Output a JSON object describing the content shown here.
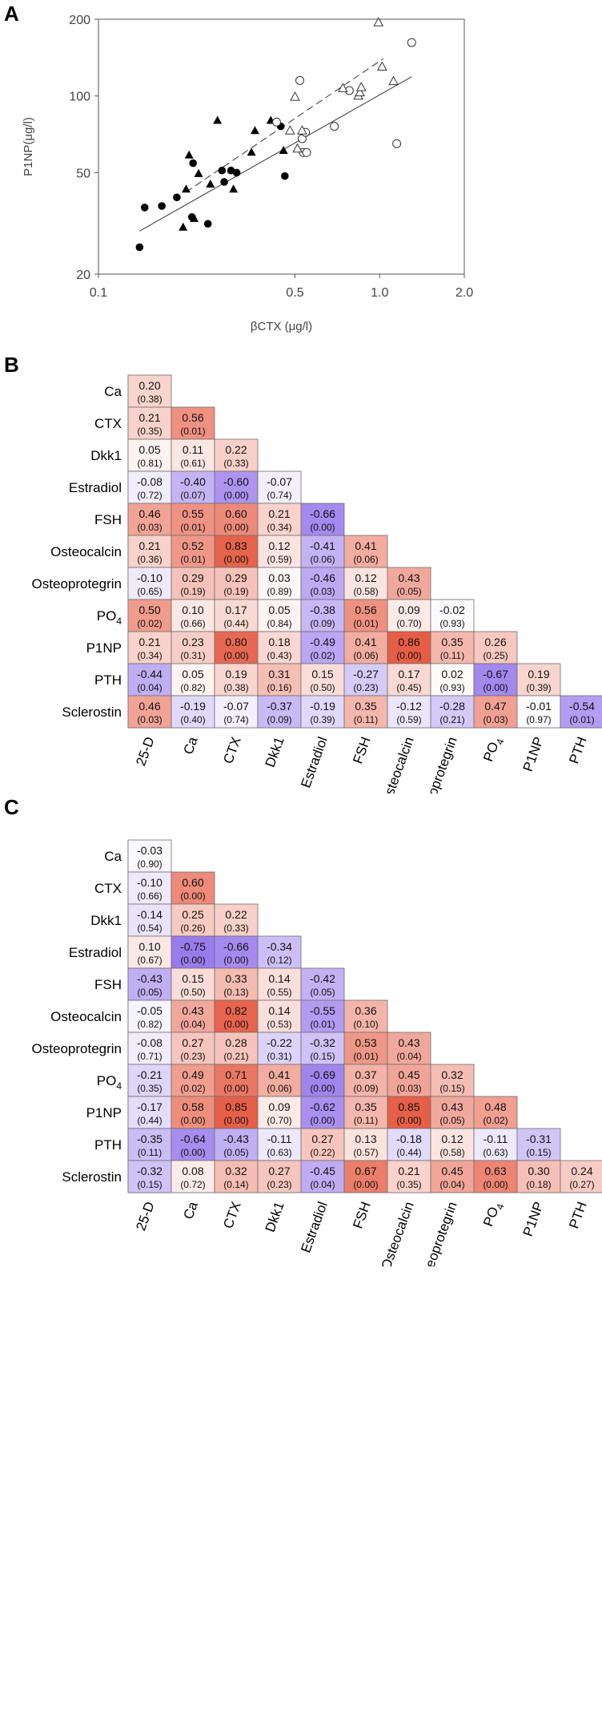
{
  "panels": {
    "A": "A",
    "B": "B",
    "C": "C"
  },
  "chart_data": [
    {
      "type": "scatter",
      "panel": "A",
      "xlabel": "βCTX (μg/l)",
      "ylabel": "P1NP(μg/l)",
      "x_scale": "log",
      "y_scale": "log",
      "xlim": [
        0.1,
        2.0
      ],
      "ylim": [
        20,
        200
      ],
      "x_ticks": [
        0.1,
        0.5,
        1.0,
        2.0
      ],
      "x_tick_labels": [
        "0.1",
        "0.5",
        "1.0",
        "2.0"
      ],
      "y_ticks": [
        20,
        50,
        100,
        200
      ],
      "y_tick_labels": [
        "20",
        "50",
        "100",
        "200"
      ],
      "series": [
        {
          "name": "filled circles",
          "marker": "circle-filled",
          "x": [
            0.14,
            0.146,
            0.168,
            0.19,
            0.215,
            0.217,
            0.245,
            0.275,
            0.28,
            0.296,
            0.31,
            0.445,
            0.46
          ],
          "y": [
            25.5,
            36.5,
            37.0,
            40.0,
            33.5,
            54.5,
            31.5,
            51.0,
            46.0,
            51.0,
            50.0,
            76.0,
            48.5
          ]
        },
        {
          "name": "filled triangles",
          "marker": "triangle-filled",
          "x": [
            0.2,
            0.205,
            0.21,
            0.219,
            0.227,
            0.25,
            0.265,
            0.302,
            0.35,
            0.36,
            0.41,
            0.455
          ],
          "y": [
            30.5,
            43.0,
            58.5,
            33.0,
            49.5,
            45.0,
            80.0,
            43.0,
            60.0,
            73.0,
            80.0,
            61.0
          ]
        },
        {
          "name": "open circles",
          "marker": "circle-open",
          "x": [
            0.43,
            0.52,
            0.53,
            0.535,
            0.545,
            0.55,
            0.69,
            0.78,
            1.15,
            1.3
          ],
          "y": [
            79.0,
            115.0,
            68.0,
            60.0,
            72.0,
            60.0,
            76.0,
            105.0,
            65.0,
            162.0
          ],
          "note": "approximate positions"
        },
        {
          "name": "open triangles",
          "marker": "triangle-open",
          "x": [
            0.48,
            0.5,
            0.51,
            0.53,
            0.74,
            0.84,
            0.85,
            0.86,
            0.99,
            1.02,
            1.12
          ],
          "y": [
            73.0,
            99.0,
            62.0,
            73.0,
            107.0,
            100.0,
            103.0,
            108.0,
            194.0,
            130.0,
            114.0
          ]
        }
      ],
      "fit_lines": [
        {
          "style": "solid",
          "x": [
            0.14,
            1.3
          ],
          "y": [
            29.5,
            119.0
          ]
        },
        {
          "style": "dashed",
          "x": [
            0.205,
            1.03
          ],
          "y": [
            42.0,
            140.0
          ]
        }
      ]
    },
    {
      "type": "heatmap",
      "panel": "B",
      "shape": "lower-triangle",
      "row_labels": [
        "Ca",
        "CTX",
        "Dkk1",
        "Estradiol",
        "FSH",
        "Osteocalcin",
        "Osteoprotegrin",
        "PO₄",
        "P1NP",
        "PTH",
        "Sclerostin"
      ],
      "column_labels": [
        "25-D",
        "Ca",
        "CTX",
        "Dkk1",
        "Estradiol",
        "FSH",
        "Osteocalcin",
        "Osteoprotegrin",
        "PO₄",
        "P1NP",
        "PTH"
      ],
      "values": [
        [
          "0.20"
        ],
        [
          "0.21",
          "0.56"
        ],
        [
          "0.05",
          "0.11",
          "0.22"
        ],
        [
          "-0.08",
          "-0.40",
          "-0.60",
          "-0.07"
        ],
        [
          "0.46",
          "0.55",
          "0.60",
          "0.21",
          "-0.66"
        ],
        [
          "0.21",
          "0.52",
          "0.83",
          "0.12",
          "-0.41",
          "0.41"
        ],
        [
          "-0.10",
          "0.29",
          "0.29",
          "0.03",
          "-0.46",
          "0.12",
          "0.43"
        ],
        [
          "0.50",
          "0.10",
          "0.17",
          "0.05",
          "-0.38",
          "0.56",
          "0.09",
          "-0.02"
        ],
        [
          "0.21",
          "0.23",
          "0.80",
          "0.18",
          "-0.49",
          "0.41",
          "0.86",
          "0.35",
          "0.26"
        ],
        [
          "-0.44",
          "0.05",
          "0.19",
          "0.31",
          "0.15",
          "-0.27",
          "0.17",
          "0.02",
          "-0.67",
          "0.19"
        ],
        [
          "0.46",
          "-0.19",
          "-0.07",
          "-0.37",
          "-0.19",
          "0.35",
          "-0.12",
          "-0.28",
          "0.47",
          "-0.01",
          "-0.54"
        ]
      ],
      "p_values": [
        [
          "(0.38)"
        ],
        [
          "(0.35)",
          "(0.01)"
        ],
        [
          "(0.81)",
          "(0.61)",
          "(0.33)"
        ],
        [
          "(0.72)",
          "(0.07)",
          "(0.00)",
          "(0.74)"
        ],
        [
          "(0.03)",
          "(0.01)",
          "(0.00)",
          "(0.34)",
          "(0.00)"
        ],
        [
          "(0.36)",
          "(0.01)",
          "(0.00)",
          "(0.59)",
          "(0.06)",
          "(0.06)"
        ],
        [
          "(0.65)",
          "(0.19)",
          "(0.19)",
          "(0.89)",
          "(0.03)",
          "(0.58)",
          "(0.05)"
        ],
        [
          "(0.02)",
          "(0.66)",
          "(0.44)",
          "(0.84)",
          "(0.09)",
          "(0.01)",
          "(0.70)",
          "(0.93)"
        ],
        [
          "(0.34)",
          "(0.31)",
          "(0.00)",
          "(0.43)",
          "(0.02)",
          "(0.06)",
          "(0.00)",
          "(0.11)",
          "(0.25)"
        ],
        [
          "(0.04)",
          "(0.82)",
          "(0.38)",
          "(0.16)",
          "(0.50)",
          "(0.23)",
          "(0.45)",
          "(0.93)",
          "(0.00)",
          "(0.39)"
        ],
        [
          "(0.03)",
          "(0.40)",
          "(0.74)",
          "(0.09)",
          "(0.39)",
          "(0.11)",
          "(0.59)",
          "(0.21)",
          "(0.03)",
          "(0.97)",
          "(0.01)"
        ]
      ]
    },
    {
      "type": "heatmap",
      "panel": "C",
      "shape": "lower-triangle",
      "row_labels": [
        "Ca",
        "CTX",
        "Dkk1",
        "Estradiol",
        "FSH",
        "Osteocalcin",
        "Osteoprotegrin",
        "PO₄",
        "P1NP",
        "PTH",
        "Sclerostin"
      ],
      "column_labels": [
        "25-D",
        "Ca",
        "CTX",
        "Dkk1",
        "Estradiol",
        "FSH",
        "Osteocalcin",
        "Osteoprotegrin",
        "PO₄",
        "P1NP",
        "PTH"
      ],
      "values": [
        [
          "-0.03"
        ],
        [
          "-0.10",
          "0.60"
        ],
        [
          "-0.14",
          "0.25",
          "0.22"
        ],
        [
          "0.10",
          "-0.75",
          "-0.66",
          "-0.34"
        ],
        [
          "-0.43",
          "0.15",
          "0.33",
          "0.14",
          "-0.42"
        ],
        [
          "-0.05",
          "0.43",
          "0.82",
          "0.14",
          "-0.55",
          "0.36"
        ],
        [
          "-0.08",
          "0.27",
          "0.28",
          "-0.22",
          "-0.32",
          "0.53",
          "0.43"
        ],
        [
          "-0.21",
          "0.49",
          "0.71",
          "0.41",
          "-0.69",
          "0.37",
          "0.45",
          "0.32"
        ],
        [
          "-0.17",
          "0.58",
          "0.85",
          "0.09",
          "-0.62",
          "0.35",
          "0.85",
          "0.43",
          "0.48"
        ],
        [
          "-0.35",
          "-0.64",
          "-0.43",
          "-0.11",
          "0.27",
          "0.13",
          "-0.18",
          "0.12",
          "-0.11",
          "-0.31"
        ],
        [
          "-0.32",
          "0.08",
          "0.32",
          "0.27",
          "-0.45",
          "0.67",
          "0.21",
          "0.45",
          "0.63",
          "0.30",
          "0.24"
        ]
      ],
      "p_values": [
        [
          "(0.90)"
        ],
        [
          "(0.66)",
          "(0.00)"
        ],
        [
          "(0.54)",
          "(0.26)",
          "(0.33)"
        ],
        [
          "(0.67)",
          "(0.00)",
          "(0.00)",
          "(0.12)"
        ],
        [
          "(0.05)",
          "(0.50)",
          "(0.13)",
          "(0.55)",
          "(0.05)"
        ],
        [
          "(0.82)",
          "(0.04)",
          "(0.00)",
          "(0.53)",
          "(0.01)",
          "(0.10)"
        ],
        [
          "(0.71)",
          "(0.23)",
          "(0.21)",
          "(0.31)",
          "(0.15)",
          "(0.01)",
          "(0.04)"
        ],
        [
          "(0.35)",
          "(0.02)",
          "(0.00)",
          "(0.06)",
          "(0.00)",
          "(0.09)",
          "(0.03)",
          "(0.15)"
        ],
        [
          "(0.44)",
          "(0.00)",
          "(0.00)",
          "(0.70)",
          "(0.00)",
          "(0.11)",
          "(0.00)",
          "(0.05)",
          "(0.02)"
        ],
        [
          "(0.11)",
          "(0.00)",
          "(0.05)",
          "(0.63)",
          "(0.22)",
          "(0.57)",
          "(0.44)",
          "(0.58)",
          "(0.63)",
          "(0.15)"
        ],
        [
          "(0.15)",
          "(0.72)",
          "(0.14)",
          "(0.23)",
          "(0.04)",
          "(0.00)",
          "(0.35)",
          "(0.04)",
          "(0.00)",
          "(0.18)",
          "(0.27)"
        ]
      ]
    }
  ],
  "colors": {
    "positive": "#e2462b",
    "negative": "#7b55e6",
    "neutral": "#ffffff",
    "grid": "#7a7a7a"
  }
}
